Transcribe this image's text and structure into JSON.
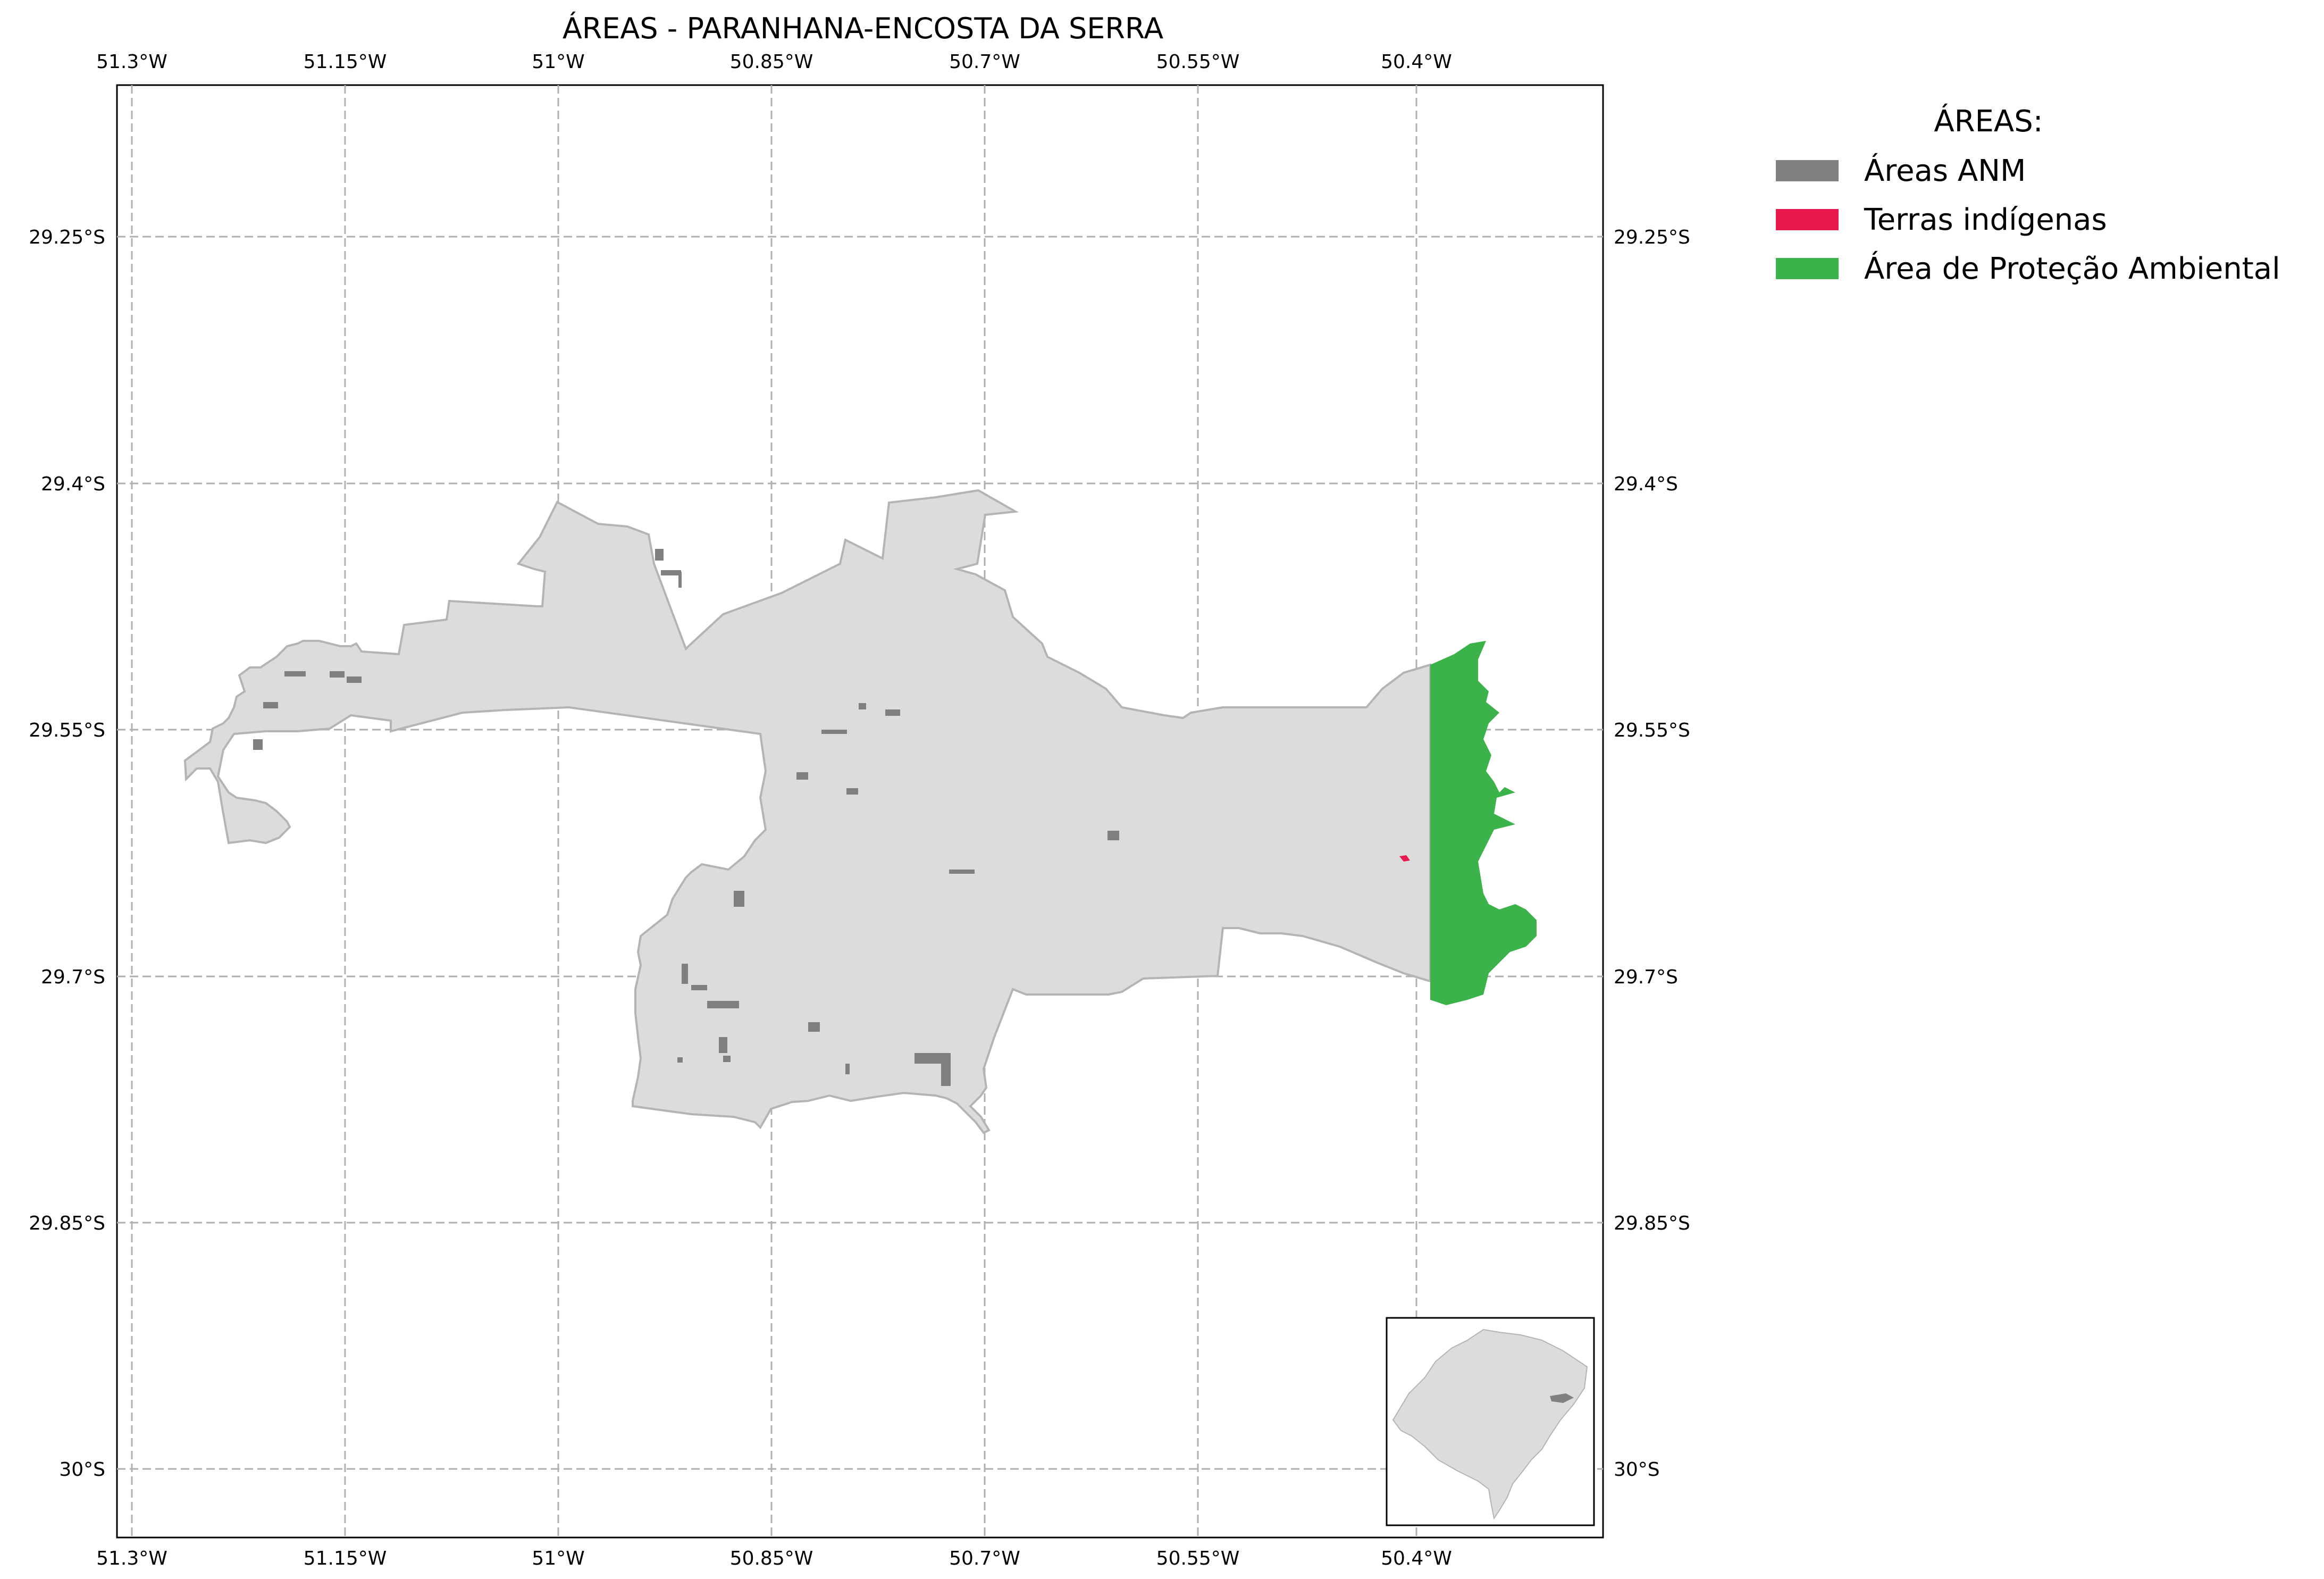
{
  "title": "ÁREAS - PARANHANA-ENCOSTA DA SERRA",
  "x_ticks": [
    "51.3°W",
    "51.15°W",
    "51°W",
    "50.85°W",
    "50.7°W",
    "50.55°W",
    "50.4°W"
  ],
  "y_ticks": [
    "29.25°S",
    "29.4°S",
    "29.55°S",
    "29.7°S",
    "29.85°S",
    "30°S"
  ],
  "legend": {
    "title": "ÁREAS:",
    "items": [
      {
        "label": "Áreas ANM",
        "color": "#808080"
      },
      {
        "label": "Terras indígenas",
        "color": "#e8194c"
      },
      {
        "label": "Área de Proteção Ambiental",
        "color": "#3cb34a"
      }
    ]
  },
  "colors": {
    "region_fill": "#dcdcdc",
    "region_stroke": "#b4b4b4",
    "grid": "#b0b0b0"
  }
}
